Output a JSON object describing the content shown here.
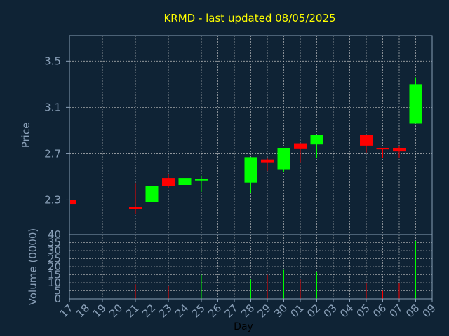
{
  "chart_data": {
    "title": "KRMD - last updated 08/05/2025",
    "xlabel": "Day",
    "colors": {
      "background": "#0f2335",
      "plot_background": "#0f2335",
      "axis": "#8aa0b8",
      "grid": "#c8c8c8",
      "title": "#ffff00",
      "up": "#00ff00",
      "down": "#ff0000",
      "xlabel": "#000000"
    },
    "x_ticks": [
      "17",
      "18",
      "19",
      "20",
      "21",
      "22",
      "23",
      "24",
      "25",
      "26",
      "27",
      "28",
      "29",
      "30",
      "01",
      "02",
      "03",
      "04",
      "05",
      "06",
      "07",
      "08",
      "09"
    ],
    "price_panel": {
      "type": "candlestick",
      "ylabel": "Price",
      "ylim": [
        2.0,
        3.72
      ],
      "yticks": [
        "2.3",
        "2.7",
        "3.1",
        "3.5"
      ],
      "ytick_values": [
        2.3,
        2.7,
        3.1,
        3.5
      ],
      "grid": true,
      "candles": [
        {
          "day": "17",
          "open": 2.3,
          "high": 2.3,
          "low": 2.26,
          "close": 2.26
        },
        {
          "day": "21",
          "open": 2.24,
          "high": 2.44,
          "low": 2.18,
          "close": 2.22
        },
        {
          "day": "22",
          "open": 2.28,
          "high": 2.47,
          "low": 2.28,
          "close": 2.42
        },
        {
          "day": "23",
          "open": 2.49,
          "high": 2.52,
          "low": 2.4,
          "close": 2.42
        },
        {
          "day": "24",
          "open": 2.43,
          "high": 2.49,
          "low": 2.38,
          "close": 2.49
        },
        {
          "day": "25",
          "open": 2.47,
          "high": 2.51,
          "low": 2.37,
          "close": 2.48
        },
        {
          "day": "28",
          "open": 2.45,
          "high": 2.67,
          "low": 2.36,
          "close": 2.67
        },
        {
          "day": "29",
          "open": 2.65,
          "high": 2.66,
          "low": 2.55,
          "close": 2.62
        },
        {
          "day": "30",
          "open": 2.56,
          "high": 2.75,
          "low": 2.54,
          "close": 2.75
        },
        {
          "day": "01",
          "open": 2.79,
          "high": 2.79,
          "low": 2.62,
          "close": 2.74
        },
        {
          "day": "02",
          "open": 2.78,
          "high": 2.86,
          "low": 2.66,
          "close": 2.86
        },
        {
          "day": "05",
          "open": 2.86,
          "high": 2.86,
          "low": 2.71,
          "close": 2.77
        },
        {
          "day": "06",
          "open": 2.75,
          "high": 2.75,
          "low": 2.66,
          "close": 2.74
        },
        {
          "day": "07",
          "open": 2.75,
          "high": 2.77,
          "low": 2.66,
          "close": 2.72
        },
        {
          "day": "08",
          "open": 2.96,
          "high": 3.36,
          "low": 2.96,
          "close": 3.3
        }
      ]
    },
    "volume_panel": {
      "type": "bar",
      "ylabel": "Volume (0000)",
      "ylim": [
        0,
        40
      ],
      "yticks": [
        "0",
        "5",
        "10",
        "15",
        "20",
        "25",
        "30",
        "35",
        "40"
      ],
      "ytick_values": [
        0,
        5,
        10,
        15,
        20,
        25,
        30,
        35,
        40
      ],
      "grid": true,
      "bars": [
        {
          "day": "17",
          "value": 0,
          "dir": "down"
        },
        {
          "day": "21",
          "value": 9,
          "dir": "down"
        },
        {
          "day": "22",
          "value": 10,
          "dir": "up"
        },
        {
          "day": "23",
          "value": 8,
          "dir": "down"
        },
        {
          "day": "24",
          "value": 4,
          "dir": "up"
        },
        {
          "day": "25",
          "value": 15,
          "dir": "up"
        },
        {
          "day": "28",
          "value": 12,
          "dir": "up"
        },
        {
          "day": "29",
          "value": 15,
          "dir": "down"
        },
        {
          "day": "30",
          "value": 18,
          "dir": "up"
        },
        {
          "day": "01",
          "value": 12,
          "dir": "down"
        },
        {
          "day": "02",
          "value": 17,
          "dir": "up"
        },
        {
          "day": "05",
          "value": 10,
          "dir": "down"
        },
        {
          "day": "06",
          "value": 5,
          "dir": "down"
        },
        {
          "day": "07",
          "value": 10,
          "dir": "down"
        },
        {
          "day": "08",
          "value": 36,
          "dir": "up"
        }
      ]
    }
  }
}
